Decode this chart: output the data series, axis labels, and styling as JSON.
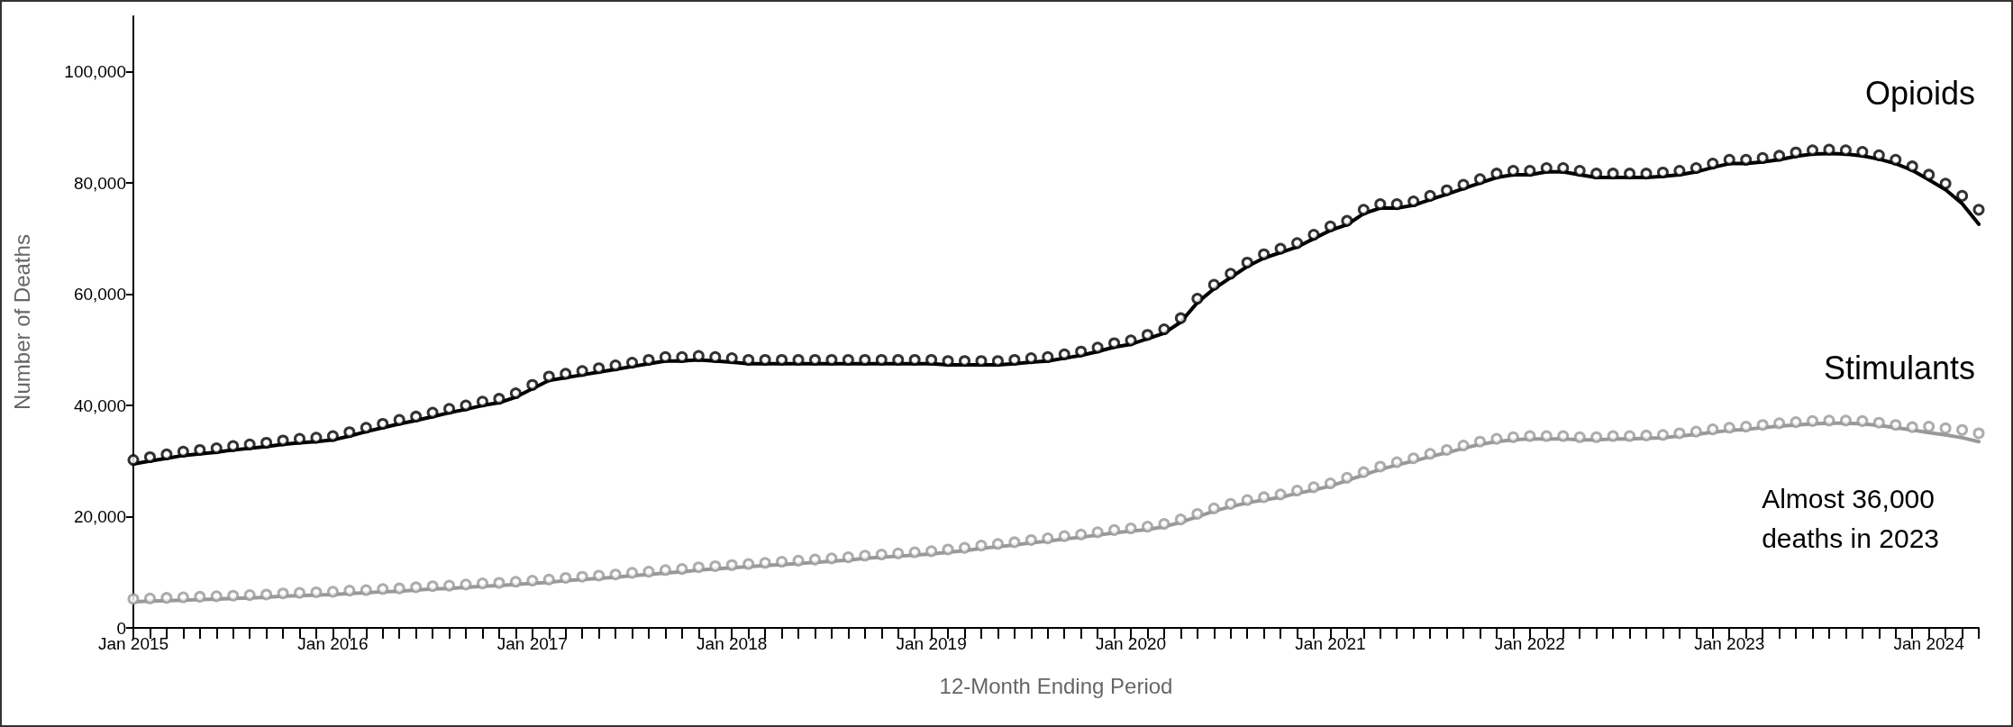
{
  "chart_data": {
    "type": "line",
    "xlabel": "12-Month Ending Period",
    "ylabel": "Number of Deaths",
    "categories": [
      "Jan 2015",
      null,
      null,
      null,
      null,
      null,
      null,
      null,
      null,
      null,
      null,
      null,
      "Jan 2016",
      null,
      null,
      null,
      null,
      null,
      null,
      null,
      null,
      null,
      null,
      null,
      "Jan 2017",
      null,
      null,
      null,
      null,
      null,
      null,
      null,
      null,
      null,
      null,
      null,
      "Jan 2018",
      null,
      null,
      null,
      null,
      null,
      null,
      null,
      null,
      null,
      null,
      null,
      "Jan 2019",
      null,
      null,
      null,
      null,
      null,
      null,
      null,
      null,
      null,
      null,
      null,
      "Jan 2020",
      null,
      null,
      null,
      null,
      null,
      null,
      null,
      null,
      null,
      null,
      null,
      "Jan 2021",
      null,
      null,
      null,
      null,
      null,
      null,
      null,
      null,
      null,
      null,
      null,
      "Jan 2022",
      null,
      null,
      null,
      null,
      null,
      null,
      null,
      null,
      null,
      null,
      null,
      "Jan 2023",
      null,
      null,
      null,
      null,
      null,
      null,
      null,
      null,
      null,
      null,
      null,
      "Jan 2024",
      null,
      null,
      null
    ],
    "ylim": [
      0,
      110000
    ],
    "yticks": [
      0,
      {
        "value": 20000,
        "label": "20,000"
      },
      {
        "value": 40000,
        "label": "40,000"
      },
      {
        "value": 60000,
        "label": "60,000"
      },
      {
        "value": 80000,
        "label": "80,000"
      },
      {
        "value": 100000,
        "label": "100,000"
      }
    ],
    "series": [
      {
        "color": "#000000",
        "marker": "none",
        "line_style": "solid",
        "values": [
          29500,
          30000,
          30500,
          31000,
          31300,
          31600,
          32000,
          32300,
          32600,
          33000,
          33300,
          33500,
          33800,
          34500,
          35300,
          36000,
          36700,
          37300,
          38000,
          38700,
          39300,
          40000,
          40500,
          41500,
          43000,
          44500,
          45000,
          45500,
          46000,
          46500,
          47000,
          47500,
          48000,
          48000,
          48200,
          48000,
          47800,
          47500,
          47500,
          47500,
          47500,
          47500,
          47500,
          47500,
          47500,
          47500,
          47500,
          47500,
          47500,
          47300,
          47300,
          47300,
          47300,
          47500,
          47800,
          48000,
          48500,
          49000,
          49700,
          50500,
          51000,
          52000,
          53000,
          55000,
          58500,
          61000,
          63000,
          65000,
          66500,
          67500,
          68500,
          70000,
          71500,
          72500,
          74500,
          75500,
          75500,
          76000,
          77000,
          78000,
          79000,
          80000,
          81000,
          81500,
          81500,
          82000,
          82000,
          81500,
          81000,
          81000,
          81000,
          81000,
          81200,
          81500,
          82000,
          82800,
          83500,
          83500,
          83800,
          84200,
          84800,
          85200,
          85300,
          85200,
          84900,
          84300,
          83500,
          82300,
          80600,
          78800,
          76300,
          72600
        ]
      },
      {
        "type": "scatter",
        "color": "#000000",
        "marker": "circle",
        "values": [
          30200,
          30700,
          31200,
          31700,
          32000,
          32300,
          32700,
          33000,
          33300,
          33700,
          34000,
          34200,
          34500,
          35200,
          36000,
          36700,
          37400,
          38000,
          38700,
          39400,
          40000,
          40700,
          41200,
          42200,
          43700,
          45200,
          45700,
          46200,
          46700,
          47200,
          47700,
          48200,
          48700,
          48700,
          48900,
          48700,
          48500,
          48200,
          48200,
          48200,
          48200,
          48200,
          48200,
          48200,
          48200,
          48200,
          48200,
          48200,
          48200,
          48000,
          48000,
          48000,
          48000,
          48200,
          48500,
          48700,
          49200,
          49700,
          50400,
          51200,
          51700,
          52700,
          53700,
          55700,
          59200,
          61700,
          63700,
          65700,
          67200,
          68200,
          69200,
          70700,
          72200,
          73200,
          75200,
          76200,
          76200,
          76700,
          77700,
          78700,
          79700,
          80700,
          81700,
          82200,
          82200,
          82700,
          82700,
          82200,
          81700,
          81700,
          81700,
          81700,
          81900,
          82200,
          82700,
          83500,
          84200,
          84200,
          84500,
          84900,
          85500,
          85900,
          86000,
          85900,
          85600,
          85000,
          84200,
          83000,
          81500,
          79900,
          77700,
          75200
        ]
      },
      {
        "color": "#999999",
        "marker": "none",
        "line_style": "solid",
        "values": [
          4700,
          4800,
          4900,
          5000,
          5100,
          5200,
          5300,
          5400,
          5500,
          5700,
          5800,
          5900,
          6000,
          6200,
          6300,
          6500,
          6600,
          6800,
          7000,
          7100,
          7300,
          7500,
          7600,
          7800,
          8000,
          8200,
          8500,
          8700,
          8900,
          9100,
          9400,
          9600,
          9900,
          10100,
          10400,
          10600,
          10800,
          11000,
          11200,
          11400,
          11600,
          11800,
          12000,
          12200,
          12500,
          12700,
          12900,
          13100,
          13300,
          13600,
          13900,
          14300,
          14600,
          14900,
          15300,
          15600,
          16000,
          16300,
          16700,
          17100,
          17400,
          17700,
          18200,
          19000,
          20000,
          21000,
          21800,
          22500,
          23000,
          23500,
          24200,
          24800,
          25500,
          26500,
          27500,
          28500,
          29300,
          30000,
          30800,
          31500,
          32300,
          33000,
          33500,
          33800,
          34000,
          34000,
          34000,
          33800,
          33800,
          34000,
          34000,
          34100,
          34200,
          34500,
          34800,
          35200,
          35500,
          35700,
          36000,
          36300,
          36500,
          36700,
          36800,
          36800,
          36700,
          36400,
          36000,
          35600,
          35100,
          34700,
          34200,
          33500
        ]
      },
      {
        "type": "scatter",
        "color": "#999999",
        "marker": "circle",
        "values": [
          5200,
          5300,
          5400,
          5500,
          5600,
          5700,
          5800,
          5900,
          6000,
          6200,
          6300,
          6400,
          6500,
          6700,
          6800,
          7000,
          7100,
          7300,
          7500,
          7600,
          7800,
          8000,
          8100,
          8300,
          8500,
          8700,
          9000,
          9200,
          9400,
          9600,
          9900,
          10100,
          10400,
          10600,
          10900,
          11100,
          11300,
          11500,
          11700,
          11900,
          12100,
          12300,
          12500,
          12700,
          13000,
          13200,
          13400,
          13600,
          13800,
          14100,
          14400,
          14800,
          15100,
          15400,
          15800,
          16100,
          16500,
          16800,
          17200,
          17600,
          17900,
          18200,
          18700,
          19500,
          20500,
          21500,
          22300,
          23000,
          23500,
          24000,
          24700,
          25300,
          26000,
          27000,
          28000,
          29000,
          29800,
          30500,
          31300,
          32000,
          32800,
          33500,
          34000,
          34300,
          34500,
          34500,
          34500,
          34300,
          34300,
          34500,
          34500,
          34600,
          34700,
          35000,
          35300,
          35700,
          36000,
          36200,
          36500,
          36800,
          37000,
          37200,
          37300,
          37300,
          37200,
          36900,
          36500,
          36100,
          36200,
          35900,
          35600,
          35000
        ]
      }
    ],
    "annotations": [
      "Opioids",
      "Stimulants",
      "Almost 36,000\ndeaths in 2023"
    ]
  }
}
